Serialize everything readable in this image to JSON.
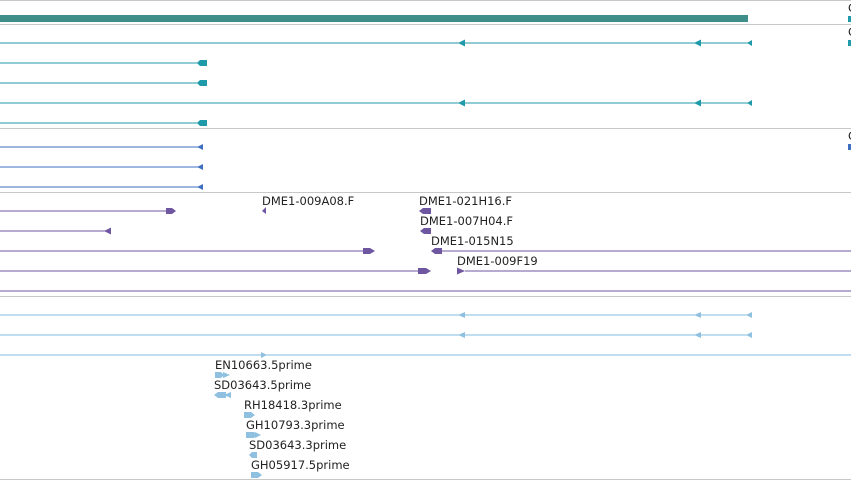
{
  "colors": {
    "gene_bar": "#3f8e8a",
    "transcript": "#1f9aaa",
    "cds": "#3e6fc0",
    "clone_end": "#6f56a0",
    "est_line": "#7fbde0",
    "est_arrow": "#8fc0e0",
    "separator": "#c8c8c8"
  },
  "icons": [
    "arrow-left-icon",
    "arrow-right-icon",
    "block-end-icon"
  ],
  "tracks": [
    {
      "name": "gene-track",
      "label": "G"
    },
    {
      "name": "transcript-track",
      "label": "G"
    },
    {
      "name": "cds-track",
      "label": "C"
    },
    {
      "name": "clone-end-track"
    },
    {
      "name": "clone-line-track"
    },
    {
      "name": "est-track"
    }
  ],
  "clone_labels": [
    "DME1-009A08.F",
    "DME1-021H16.F",
    "DME1-007H04.F",
    "DME1-015N15",
    "DME1-009F19"
  ],
  "est_labels": [
    "EN10663.5prime",
    "SD03643.5prime",
    "RH18418.3prime",
    "GH10793.3prime",
    "SD03643.3prime",
    "GH05917.5prime"
  ]
}
